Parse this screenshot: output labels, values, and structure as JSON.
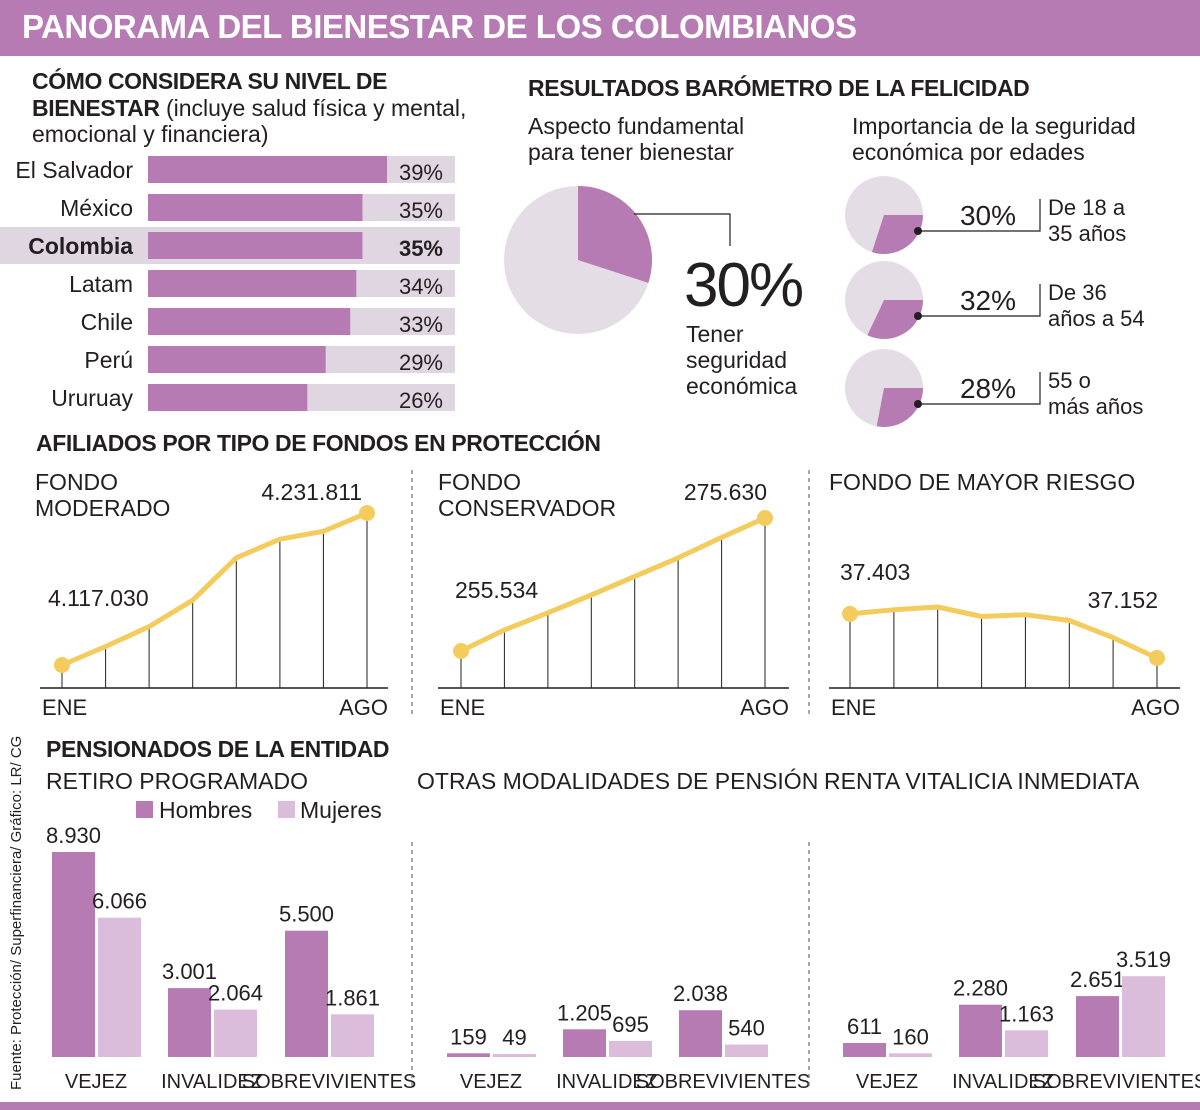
{
  "title": "PANORAMA DEL BIENESTAR DE LOS COLOMBIANOS",
  "source": "Fuente: Protección/ Superfinanciera/ Gráfico: LR/ CG",
  "colors": {
    "purple": "#b77bb3",
    "light_purple": "#dbbcdb",
    "bar_track": "#e0d6e1",
    "pie_bg": "#e5dde6",
    "line_yellow": "#f4cc5e"
  },
  "wellbeing": {
    "title_bold_1": "CÓMO CONSIDERA SU NIVEL DE",
    "title_bold_2": "BIENESTAR",
    "title_light_2": " (incluye salud física y mental,",
    "title_light_3": "emocional y financiera)"
  },
  "barometer": {
    "title": "RESULTADOS BARÓMETRO DE LA FELICIDAD",
    "main_sub_1": "Aspecto fundamental",
    "main_sub_2": "para tener bienestar",
    "main_value_text": "30%",
    "main_caption_1": "Tener",
    "main_caption_2": "seguridad",
    "main_caption_3": "económica",
    "ages_sub_1": "Importancia de la seguridad",
    "ages_sub_2": "económica por edades"
  },
  "funds": {
    "title": "AFILIADOS POR TIPO DE FONDOS EN PROTECCIÓN"
  },
  "pensioners": {
    "title": "PENSIONADOS DE LA ENTIDAD",
    "legend_men": "Hombres",
    "legend_women": "Mujeres"
  },
  "chart_data": [
    {
      "type": "bar",
      "orientation": "horizontal",
      "title": "CÓMO CONSIDERA SU NIVEL DE BIENESTAR (incluye salud física y mental, emocional y financiera)",
      "categories": [
        "El Salvador",
        "México",
        "Colombia",
        "Latam",
        "Chile",
        "Perú",
        "Ururuay"
      ],
      "values": [
        39,
        35,
        35,
        34,
        33,
        29,
        26
      ],
      "value_labels": [
        "39%",
        "35%",
        "35%",
        "34%",
        "33%",
        "29%",
        "26%"
      ],
      "highlight": "Colombia",
      "xlim": [
        0,
        50
      ]
    },
    {
      "type": "pie",
      "title": "Aspecto fundamental para tener bienestar",
      "label": "Tener seguridad económica",
      "value": 30,
      "value_label": "30%"
    },
    {
      "type": "pie",
      "title": "Importancia de la seguridad económica por edades",
      "series": [
        {
          "label_1": "De 18 a",
          "label_2": "35 años",
          "value": 30,
          "value_label": "30%"
        },
        {
          "label_1": "De 36",
          "label_2": "años a 54",
          "value": 32,
          "value_label": "32%"
        },
        {
          "label_1": "55 o",
          "label_2": "más años",
          "value": 28,
          "value_label": "28%"
        }
      ]
    },
    {
      "type": "line",
      "title_1": "FONDO",
      "title_2": "MODERADO",
      "x_start": "ENE",
      "x_end": "AGO",
      "values": [
        4117030,
        4131000,
        4146000,
        4166000,
        4198000,
        4212000,
        4218000,
        4231811
      ],
      "first_label": "4.117.030",
      "last_label": "4.231.811"
    },
    {
      "type": "line",
      "title_1": "FONDO",
      "title_2": "CONSERVADOR",
      "x_start": "ENE",
      "x_end": "AGO",
      "values": [
        255534,
        258700,
        261300,
        264000,
        266800,
        269600,
        272700,
        275630
      ],
      "first_label": "255.534",
      "last_label": "275.630"
    },
    {
      "type": "line",
      "title_1": "FONDO DE MAYOR RIESGO",
      "title_2": "",
      "x_start": "ENE",
      "x_end": "AGO",
      "values": [
        37403,
        37426,
        37442,
        37388,
        37398,
        37365,
        37268,
        37152
      ],
      "first_label": "37.403",
      "last_label": "37.152"
    },
    {
      "type": "bar",
      "title": "RETIRO PROGRAMADO",
      "categories": [
        "VEJEZ",
        "INVALIDEZ",
        "SOBREVIVIENTES"
      ],
      "series": [
        {
          "name": "Hombres",
          "values": [
            8930,
            3001,
            5500
          ],
          "labels": [
            "8.930",
            "3.001",
            "5.500"
          ]
        },
        {
          "name": "Mujeres",
          "values": [
            6066,
            2064,
            1861
          ],
          "labels": [
            "6.066",
            "2.064",
            "1.861"
          ]
        }
      ]
    },
    {
      "type": "bar",
      "title": "OTRAS MODALIDADES DE PENSIÓN",
      "categories": [
        "VEJEZ",
        "INVALIDEZ",
        "SOBREVIVIENTES"
      ],
      "series": [
        {
          "name": "Hombres",
          "values": [
            159,
            1205,
            2038
          ],
          "labels": [
            "159",
            "1.205",
            "2.038"
          ]
        },
        {
          "name": "Mujeres",
          "values": [
            49,
            695,
            540
          ],
          "labels": [
            "49",
            "695",
            "540"
          ]
        }
      ]
    },
    {
      "type": "bar",
      "title": "RENTA VITALICIA INMEDIATA",
      "categories": [
        "VEJEZ",
        "INVALIDEZ",
        "SOBREVIVIENTES"
      ],
      "series": [
        {
          "name": "Hombres",
          "values": [
            611,
            2280,
            2651
          ],
          "labels": [
            "611",
            "2.280",
            "2.651"
          ]
        },
        {
          "name": "Mujeres",
          "values": [
            160,
            1163,
            3519
          ],
          "labels": [
            "160",
            "1.163",
            "3.519"
          ]
        }
      ]
    }
  ]
}
